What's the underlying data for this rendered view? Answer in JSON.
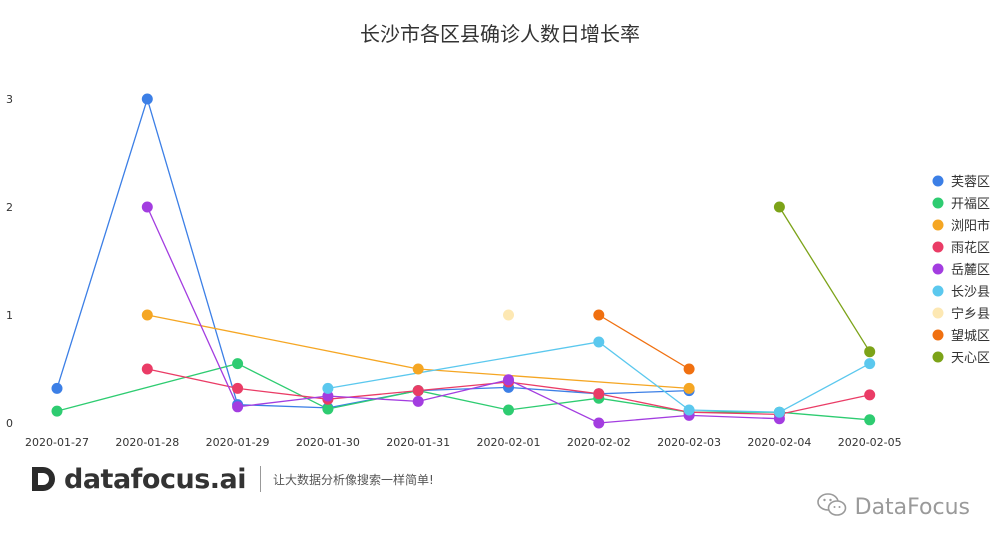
{
  "chart_data": {
    "type": "line",
    "title": "长沙市各区县确诊人数日增长率",
    "categories": [
      "2020-01-27",
      "2020-01-28",
      "2020-01-29",
      "2020-01-30",
      "2020-01-31",
      "2020-02-01",
      "2020-02-02",
      "2020-02-03",
      "2020-02-04",
      "2020-02-05"
    ],
    "yticks": [
      "0",
      "1",
      "2",
      "3"
    ],
    "ylim": [
      0,
      3
    ],
    "grid": false,
    "legend_position": "right",
    "series": [
      {
        "name": "芙蓉区",
        "color": "#3c7fe6",
        "values": [
          0.32,
          3.0,
          0.17,
          0.14,
          0.3,
          0.33,
          0.27,
          0.3,
          null,
          null
        ]
      },
      {
        "name": "开福区",
        "color": "#2ecc71",
        "values": [
          0.11,
          null,
          0.55,
          0.13,
          0.3,
          0.12,
          0.23,
          0.1,
          0.1,
          0.03
        ]
      },
      {
        "name": "浏阳市",
        "color": "#f5a623",
        "values": [
          null,
          1.0,
          null,
          null,
          0.5,
          null,
          null,
          0.32,
          null,
          null
        ]
      },
      {
        "name": "雨花区",
        "color": "#ea3c66",
        "values": [
          null,
          0.5,
          0.32,
          0.22,
          0.3,
          0.38,
          0.27,
          0.1,
          0.08,
          0.26
        ]
      },
      {
        "name": "岳麓区",
        "color": "#a33de0",
        "values": [
          null,
          2.0,
          0.15,
          0.25,
          0.2,
          0.4,
          0.0,
          0.07,
          0.04,
          null
        ]
      },
      {
        "name": "长沙县",
        "color": "#5bc8ee",
        "values": [
          null,
          null,
          null,
          0.32,
          null,
          null,
          0.75,
          0.12,
          0.1,
          0.55
        ]
      },
      {
        "name": "宁乡县",
        "color": "#fde8b3",
        "values": [
          null,
          null,
          null,
          null,
          null,
          1.0,
          null,
          null,
          null,
          null
        ]
      },
      {
        "name": "望城区",
        "color": "#f07010",
        "values": [
          null,
          null,
          null,
          null,
          null,
          null,
          1.0,
          0.5,
          null,
          null
        ]
      },
      {
        "name": "天心区",
        "color": "#7ca318",
        "values": [
          null,
          null,
          null,
          null,
          null,
          null,
          null,
          null,
          2.0,
          0.66
        ]
      }
    ]
  },
  "branding": {
    "name": "datafocus.ai",
    "slogan": "让大数据分析像搜索一样简单!"
  },
  "watermark": {
    "text": "DataFocus"
  }
}
